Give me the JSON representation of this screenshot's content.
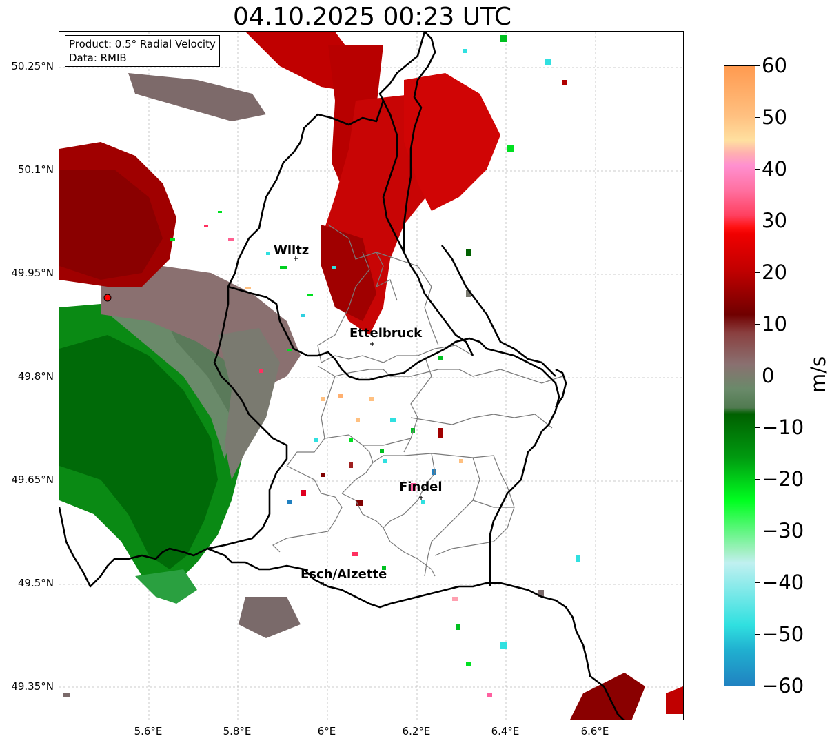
{
  "title": "04.10.2025 00:23 UTC",
  "info": {
    "product": "Product: 0.5° Radial Velocity",
    "source": "Data: RMIB"
  },
  "lat_ticks": [
    "50.25°N",
    "50.1°N",
    "49.95°N",
    "49.8°N",
    "49.65°N",
    "49.5°N",
    "49.35°N"
  ],
  "lon_ticks": [
    "5.6°E",
    "5.8°E",
    "6°E",
    "6.2°E",
    "6.4°E",
    "6.6°E"
  ],
  "places": [
    {
      "name": "Wiltz"
    },
    {
      "name": "Ettelbruck"
    },
    {
      "name": "Findel"
    },
    {
      "name": "Esch/Alzette"
    }
  ],
  "radar_site": {
    "color": "#ff0000"
  },
  "colorbar": {
    "unit": "m/s",
    "min": -60,
    "max": 60,
    "tick_labels": [
      "60",
      "50",
      "40",
      "30",
      "20",
      "10",
      "0",
      "−10",
      "−20",
      "−30",
      "−40",
      "−50",
      "−60"
    ],
    "colors": {
      "outbound_light": "#ffa060",
      "outbound_pink": "#ff80c0",
      "outbound_red": "#ff0000",
      "outbound_dark": "#700000",
      "neutral": "#7a7a7a",
      "inbound_dark": "#006000",
      "inbound_green": "#00ff20",
      "inbound_cyan": "#30e0e0",
      "inbound_blue": "#2080c0"
    }
  }
}
